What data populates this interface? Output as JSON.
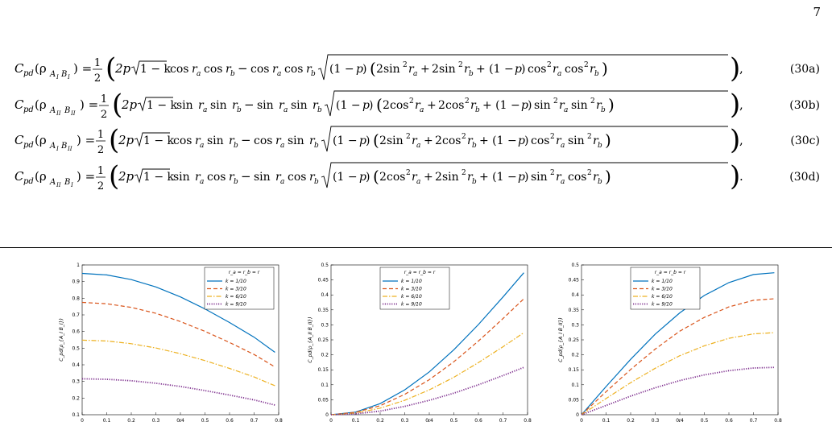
{
  "page": {
    "number": "7"
  },
  "equations": [
    {
      "lhs_sub": "AIBI",
      "lhs": "C_pd(ρ_{A_I B_I})",
      "trig1": "cos",
      "trig2": "cos",
      "sin_cos_in": [
        "sin",
        "sin",
        "cos",
        "cos"
      ],
      "tag": "(30a)"
    },
    {
      "lhs_sub": "AIIBII",
      "lhs": "C_pd(ρ_{A_II B_II})",
      "trig1": "sin",
      "trig2": "sin",
      "sin_cos_in": [
        "cos",
        "cos",
        "sin",
        "sin"
      ],
      "tag": "(30b)"
    },
    {
      "lhs_sub": "AIBII",
      "lhs": "C_pd(ρ_{A_I B_II})",
      "trig1": "cos",
      "trig2": "sin",
      "sin_cos_in": [
        "sin",
        "cos",
        "cos",
        "sin"
      ],
      "tag": "(30c)"
    },
    {
      "lhs_sub": "AIIBI",
      "lhs": "C_pd(ρ_{A_II B_I})",
      "trig1": "sin",
      "trig2": "cos",
      "sin_cos_in": [
        "cos",
        "sin",
        "sin",
        "cos"
      ],
      "tag": "(30d)"
    }
  ],
  "equation_endings": [
    ",",
    ",",
    ",",
    "."
  ],
  "chart_data": [
    {
      "type": "line",
      "xlabel": "r",
      "ylabel": "C_pd(ρ_{A_I B_I})",
      "xlim": [
        0,
        0.8
      ],
      "ylim": [
        0.1,
        1
      ],
      "xticks": [
        "0",
        "0.1",
        "0.2",
        "0.3",
        "0.4",
        "0.5",
        "0.6",
        "0.7",
        "0.8"
      ],
      "yticks": [
        "0.1",
        "0.2",
        "0.3",
        "0.4",
        "0.5",
        "0.6",
        "0.7",
        "0.8",
        "0.9",
        "1"
      ],
      "legend_title": "r_a = r_b = r",
      "legend_position": "top-right",
      "x": [
        0,
        0.1,
        0.2,
        0.3,
        0.4,
        0.5,
        0.6,
        0.7,
        0.785
      ],
      "series": [
        {
          "name": "k = 1/10",
          "color": "#0072BD",
          "dash": "solid",
          "values": [
            0.949,
            0.94,
            0.912,
            0.868,
            0.808,
            0.736,
            0.654,
            0.566,
            0.475
          ]
        },
        {
          "name": "k = 3/10",
          "color": "#D95319",
          "dash": "dashed",
          "values": [
            0.775,
            0.767,
            0.745,
            0.709,
            0.66,
            0.601,
            0.534,
            0.462,
            0.387
          ]
        },
        {
          "name": "k = 6/10",
          "color": "#EDB120",
          "dash": "dashdot",
          "values": [
            0.548,
            0.543,
            0.527,
            0.501,
            0.467,
            0.425,
            0.378,
            0.327,
            0.274
          ]
        },
        {
          "name": "k = 9/10",
          "color": "#7E2F8E",
          "dash": "dotted",
          "values": [
            0.316,
            0.313,
            0.304,
            0.289,
            0.27,
            0.245,
            0.218,
            0.189,
            0.158
          ]
        }
      ]
    },
    {
      "type": "line",
      "xlabel": "r",
      "ylabel": "C_pd(ρ_{A_II B_II})",
      "xlim": [
        0,
        0.8
      ],
      "ylim": [
        0,
        0.5
      ],
      "xticks": [
        "0",
        "0.1",
        "0.2",
        "0.3",
        "0.4",
        "0.5",
        "0.6",
        "0.7",
        "0.8"
      ],
      "yticks": [
        "0",
        "0.05",
        "0.1",
        "0.15",
        "0.2",
        "0.25",
        "0.3",
        "0.35",
        "0.4",
        "0.45",
        "0.5"
      ],
      "legend_title": "r_a = r_b = r",
      "legend_position": "top-left",
      "x": [
        0,
        0.1,
        0.2,
        0.3,
        0.4,
        0.5,
        0.6,
        0.7,
        0.785
      ],
      "series": [
        {
          "name": "k = 1/10",
          "color": "#0072BD",
          "dash": "solid",
          "values": [
            0,
            0.009,
            0.037,
            0.083,
            0.143,
            0.217,
            0.301,
            0.393,
            0.474
          ]
        },
        {
          "name": "k = 3/10",
          "color": "#D95319",
          "dash": "dashed",
          "values": [
            0,
            0.008,
            0.03,
            0.068,
            0.117,
            0.177,
            0.246,
            0.321,
            0.387
          ]
        },
        {
          "name": "k = 6/10",
          "color": "#EDB120",
          "dash": "dashdot",
          "values": [
            0,
            0.005,
            0.022,
            0.048,
            0.083,
            0.125,
            0.174,
            0.227,
            0.274
          ]
        },
        {
          "name": "k = 9/10",
          "color": "#7E2F8E",
          "dash": "dotted",
          "values": [
            0,
            0.003,
            0.012,
            0.028,
            0.048,
            0.072,
            0.1,
            0.131,
            0.158
          ]
        }
      ]
    },
    {
      "type": "line",
      "xlabel": "r",
      "ylabel": "C_pd(ρ_{A_I B_II})",
      "xlim": [
        0,
        0.8
      ],
      "ylim": [
        0,
        0.5
      ],
      "xticks": [
        "0",
        "0.1",
        "0.2",
        "0.3",
        "0.4",
        "0.5",
        "0.6",
        "0.7",
        "0.8"
      ],
      "yticks": [
        "0",
        "0.05",
        "0.1",
        "0.15",
        "0.2",
        "0.25",
        "0.3",
        "0.35",
        "0.4",
        "0.45",
        "0.5"
      ],
      "legend_title": "r_a = r_b = r",
      "legend_position": "top-left",
      "x": [
        0,
        0.1,
        0.2,
        0.3,
        0.4,
        0.5,
        0.6,
        0.7,
        0.785
      ],
      "series": [
        {
          "name": "k = 1/10",
          "color": "#0072BD",
          "dash": "solid",
          "values": [
            0,
            0.094,
            0.185,
            0.269,
            0.34,
            0.398,
            0.441,
            0.468,
            0.474
          ]
        },
        {
          "name": "k = 3/10",
          "color": "#D95319",
          "dash": "dashed",
          "values": [
            0,
            0.077,
            0.151,
            0.219,
            0.279,
            0.325,
            0.36,
            0.382,
            0.387
          ]
        },
        {
          "name": "k = 6/10",
          "color": "#EDB120",
          "dash": "dashdot",
          "values": [
            0,
            0.054,
            0.107,
            0.155,
            0.197,
            0.23,
            0.255,
            0.27,
            0.274
          ]
        },
        {
          "name": "k = 9/10",
          "color": "#7E2F8E",
          "dash": "dotted",
          "values": [
            0,
            0.031,
            0.062,
            0.09,
            0.114,
            0.133,
            0.147,
            0.156,
            0.158
          ]
        }
      ]
    }
  ]
}
